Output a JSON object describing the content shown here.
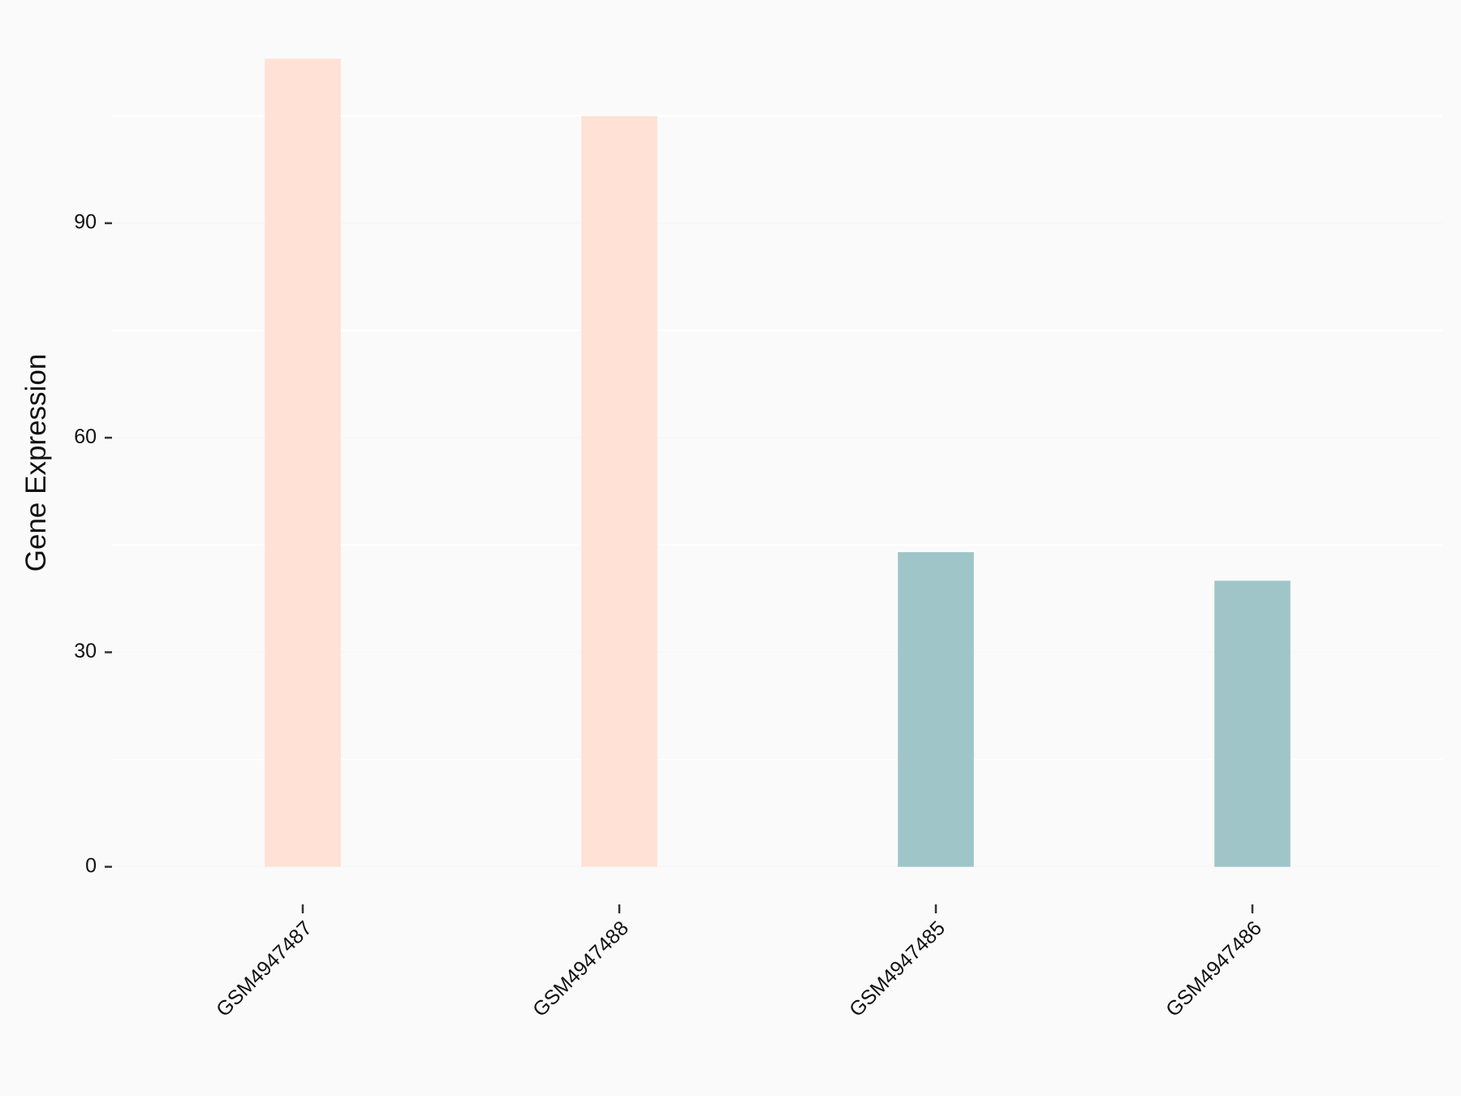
{
  "chart_data": {
    "type": "bar",
    "y_label": "Gene Expression",
    "categories": [
      "GSM4947487",
      "GSM4947488",
      "GSM4947485",
      "GSM4947486"
    ],
    "values": [
      113,
      105,
      44,
      40
    ],
    "colors": [
      "#ffe1d6",
      "#ffe1d6",
      "#9fc5c9",
      "#9fc5c9"
    ],
    "ylim": [
      -5.6,
      118.6
    ],
    "yticks": [
      0,
      30,
      60,
      90
    ],
    "minor_grid": [
      15,
      45,
      75,
      105
    ],
    "grid": true
  }
}
